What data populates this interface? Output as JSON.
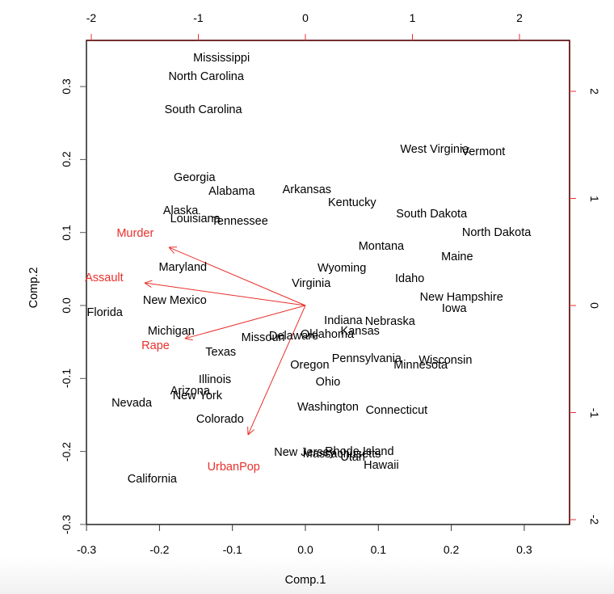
{
  "chart_data": {
    "type": "scatter",
    "subtype": "biplot",
    "title": "",
    "xlabel": "Comp.1",
    "ylabel": "Comp.2",
    "xlim": [
      -0.3,
      0.363
    ],
    "ylim": [
      -0.3,
      0.363
    ],
    "x_ticks": [
      "-0.3",
      "-0.2",
      "-0.1",
      "0.0",
      "0.1",
      "0.2",
      "0.3"
    ],
    "y_ticks": [
      "-0.3",
      "-0.2",
      "-0.1",
      "0.0",
      "0.1",
      "0.2",
      "0.3"
    ],
    "top_ticks": [
      "-2",
      "-1",
      "0",
      "1",
      "2"
    ],
    "right_ticks": [
      "-2",
      "-1",
      "0",
      "1",
      "2"
    ],
    "grid": false,
    "colors": {
      "points": "#000000",
      "loadings": "#e8302c",
      "axis": "#222222"
    },
    "points": [
      {
        "label": "Mississippi",
        "x": -0.115,
        "y": 0.339
      },
      {
        "label": "North Carolina",
        "x": -0.136,
        "y": 0.313
      },
      {
        "label": "South Carolina",
        "x": -0.14,
        "y": 0.268
      },
      {
        "label": "West Virginia",
        "x": 0.177,
        "y": 0.214
      },
      {
        "label": "Vermont",
        "x": 0.244,
        "y": 0.21
      },
      {
        "label": "Georgia",
        "x": -0.152,
        "y": 0.175
      },
      {
        "label": "Alabama",
        "x": -0.101,
        "y": 0.156
      },
      {
        "label": "Arkansas",
        "x": 0.002,
        "y": 0.158
      },
      {
        "label": "Kentucky",
        "x": 0.064,
        "y": 0.141
      },
      {
        "label": "Alaska",
        "x": -0.171,
        "y": 0.13
      },
      {
        "label": "Louisiana",
        "x": -0.151,
        "y": 0.118
      },
      {
        "label": "Tennessee",
        "x": -0.09,
        "y": 0.115
      },
      {
        "label": "South Dakota",
        "x": 0.173,
        "y": 0.125
      },
      {
        "label": "North Dakota",
        "x": 0.262,
        "y": 0.1
      },
      {
        "label": "Montana",
        "x": 0.104,
        "y": 0.081
      },
      {
        "label": "Maine",
        "x": 0.208,
        "y": 0.066
      },
      {
        "label": "Maryland",
        "x": -0.168,
        "y": 0.052
      },
      {
        "label": "Wyoming",
        "x": 0.05,
        "y": 0.051
      },
      {
        "label": "Virginia",
        "x": 0.008,
        "y": 0.03
      },
      {
        "label": "Idaho",
        "x": 0.143,
        "y": 0.037
      },
      {
        "label": "New Hampshire",
        "x": 0.214,
        "y": 0.011
      },
      {
        "label": "Iowa",
        "x": 0.204,
        "y": -0.004
      },
      {
        "label": "New Mexico",
        "x": -0.179,
        "y": 0.007
      },
      {
        "label": "Florida",
        "x": -0.275,
        "y": -0.01
      },
      {
        "label": "Indiana",
        "x": 0.052,
        "y": -0.021
      },
      {
        "label": "Nebraska",
        "x": 0.116,
        "y": -0.022
      },
      {
        "label": "Kansas",
        "x": 0.075,
        "y": -0.035
      },
      {
        "label": "Michigan",
        "x": -0.184,
        "y": -0.035
      },
      {
        "label": "Missouri",
        "x": -0.058,
        "y": -0.044
      },
      {
        "label": "Delaware",
        "x": -0.016,
        "y": -0.042
      },
      {
        "label": "Oklahoma",
        "x": 0.03,
        "y": -0.04
      },
      {
        "label": "Texas",
        "x": -0.116,
        "y": -0.064
      },
      {
        "label": "Pennsylvania",
        "x": 0.084,
        "y": -0.073
      },
      {
        "label": "Wisconsin",
        "x": 0.192,
        "y": -0.075
      },
      {
        "label": "Minnesota",
        "x": 0.158,
        "y": -0.082
      },
      {
        "label": "Oregon",
        "x": 0.006,
        "y": -0.082
      },
      {
        "label": "Illinois",
        "x": -0.124,
        "y": -0.102
      },
      {
        "label": "Ohio",
        "x": 0.031,
        "y": -0.105
      },
      {
        "label": "Arizona",
        "x": -0.158,
        "y": -0.117
      },
      {
        "label": "New York",
        "x": -0.148,
        "y": -0.124
      },
      {
        "label": "Nevada",
        "x": -0.238,
        "y": -0.134
      },
      {
        "label": "Washington",
        "x": 0.031,
        "y": -0.14
      },
      {
        "label": "Connecticut",
        "x": 0.125,
        "y": -0.144
      },
      {
        "label": "Colorado",
        "x": -0.117,
        "y": -0.156
      },
      {
        "label": "New Jersey",
        "x": -0.001,
        "y": -0.202
      },
      {
        "label": "Rhode Island",
        "x": 0.074,
        "y": -0.2
      },
      {
        "label": "Massachusetts",
        "x": 0.05,
        "y": -0.204
      },
      {
        "label": "Utah",
        "x": 0.065,
        "y": -0.208
      },
      {
        "label": "Hawaii",
        "x": 0.104,
        "y": -0.219
      },
      {
        "label": "California",
        "x": -0.21,
        "y": -0.238
      }
    ],
    "loadings": [
      {
        "label": "Murder",
        "x": -1.275,
        "y": 0.543,
        "label_x": -1.59,
        "label_y": 0.67
      },
      {
        "label": "Assault",
        "x": -1.502,
        "y": 0.211,
        "label_x": -1.88,
        "label_y": 0.26
      },
      {
        "label": "Rape",
        "x": -1.125,
        "y": -0.309,
        "label_x": -1.4,
        "label_y": -0.38
      },
      {
        "label": "UrbanPop",
        "x": -0.536,
        "y": -1.208,
        "label_x": -0.67,
        "label_y": -1.51
      }
    ]
  }
}
